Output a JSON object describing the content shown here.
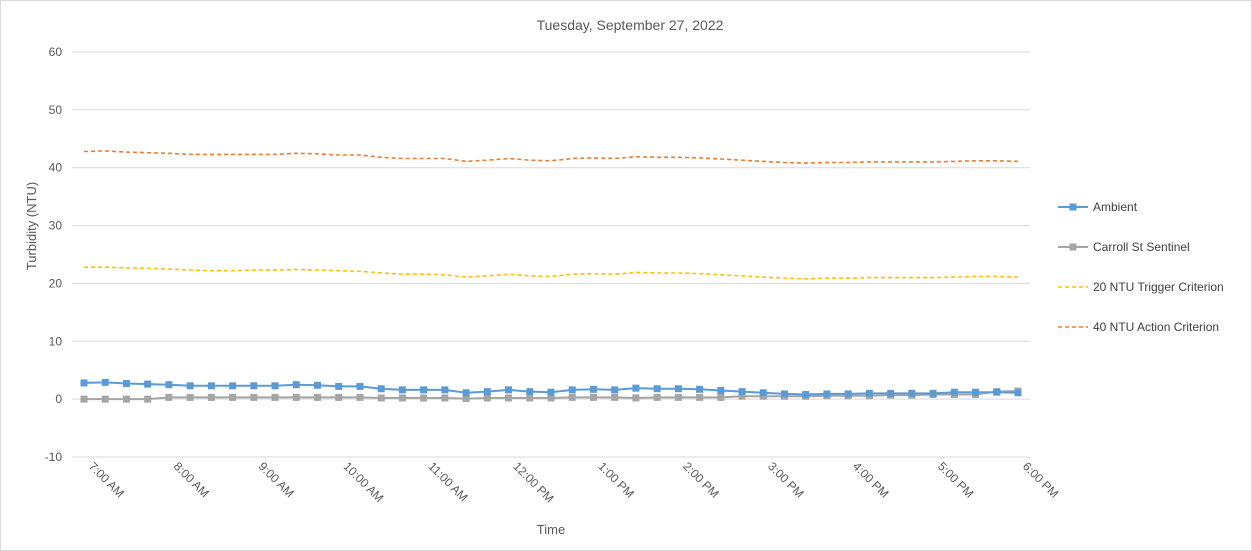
{
  "chart_data": {
    "type": "line",
    "title": "Tuesday, September 27, 2022",
    "xlabel": "Time",
    "ylabel": "Turbidity (NTU)",
    "ylim": [
      -10,
      60
    ],
    "yticks": [
      -10,
      0,
      10,
      20,
      30,
      40,
      50,
      60
    ],
    "x_tick_labels": [
      "7:00 AM",
      "8:00 AM",
      "9:00 AM",
      "10:00 AM",
      "11:00 AM",
      "12:00 PM",
      "1:00 PM",
      "2:00 PM",
      "3:00 PM",
      "4:00 PM",
      "5:00 PM",
      "6:00 PM"
    ],
    "xlim": [
      "7:00 AM",
      "6:00 PM"
    ],
    "grid": "horizontal",
    "legend_position": "right",
    "x": [
      "7:00 AM",
      "7:15 AM",
      "7:30 AM",
      "7:45 AM",
      "8:00 AM",
      "8:15 AM",
      "8:30 AM",
      "8:45 AM",
      "9:00 AM",
      "9:15 AM",
      "9:30 AM",
      "9:45 AM",
      "10:00 AM",
      "10:15 AM",
      "10:30 AM",
      "10:45 AM",
      "11:00 AM",
      "11:15 AM",
      "11:30 AM",
      "11:45 AM",
      "12:00 PM",
      "12:15 PM",
      "12:30 PM",
      "12:45 PM",
      "1:00 PM",
      "1:15 PM",
      "1:30 PM",
      "1:45 PM",
      "2:00 PM",
      "2:15 PM",
      "2:30 PM",
      "2:45 PM",
      "3:00 PM",
      "3:15 PM",
      "3:30 PM",
      "3:45 PM",
      "4:00 PM",
      "4:15 PM",
      "4:30 PM",
      "4:45 PM",
      "5:00 PM",
      "5:15 PM",
      "5:30 PM",
      "5:45 PM",
      "6:00 PM"
    ],
    "series": [
      {
        "name": "Ambient",
        "color": "#5B9BD5",
        "style": "solid",
        "marker": "square",
        "values": [
          2.8,
          2.9,
          2.7,
          2.6,
          2.5,
          2.3,
          2.3,
          2.3,
          2.3,
          2.3,
          2.5,
          2.4,
          2.2,
          2.2,
          1.8,
          1.6,
          1.6,
          1.6,
          1.1,
          1.3,
          1.6,
          1.3,
          1.2,
          1.6,
          1.7,
          1.6,
          1.9,
          1.8,
          1.8,
          1.7,
          1.5,
          1.3,
          1.1,
          0.9,
          0.8,
          0.9,
          0.9,
          1.0,
          1.0,
          1.0,
          1.0,
          1.2,
          1.2,
          1.2,
          1.1
        ]
      },
      {
        "name": "Carroll St Sentinel",
        "color": "#A5A5A5",
        "style": "solid",
        "marker": "square",
        "values": [
          0.0,
          0.0,
          0.0,
          0.0,
          0.3,
          0.3,
          0.3,
          0.3,
          0.3,
          0.3,
          0.3,
          0.3,
          0.3,
          0.3,
          0.2,
          0.2,
          0.2,
          0.2,
          0.1,
          0.2,
          0.2,
          0.2,
          0.2,
          0.3,
          0.3,
          0.3,
          0.2,
          0.3,
          0.3,
          0.3,
          0.3,
          0.5,
          0.5,
          0.5,
          0.5,
          0.6,
          0.6,
          0.6,
          0.7,
          0.7,
          0.8,
          0.8,
          0.8,
          1.3,
          1.4
        ]
      },
      {
        "name": "20 NTU Trigger Criterion",
        "color": "#FFC000",
        "style": "dashed",
        "marker": "none",
        "values": [
          22.8,
          22.8,
          22.7,
          22.6,
          22.5,
          22.3,
          22.2,
          22.2,
          22.3,
          22.3,
          22.4,
          22.3,
          22.2,
          22.1,
          21.8,
          21.6,
          21.6,
          21.5,
          21.1,
          21.3,
          21.6,
          21.3,
          21.2,
          21.6,
          21.7,
          21.6,
          21.9,
          21.8,
          21.8,
          21.7,
          21.5,
          21.3,
          21.1,
          20.9,
          20.8,
          20.9,
          20.9,
          21.0,
          21.0,
          21.0,
          21.0,
          21.1,
          21.2,
          21.2,
          21.1
        ]
      },
      {
        "name": "40 NTU Action Criterion",
        "color": "#ED7D31",
        "style": "dashed",
        "marker": "none",
        "values": [
          42.8,
          42.9,
          42.7,
          42.6,
          42.5,
          42.3,
          42.3,
          42.3,
          42.3,
          42.3,
          42.5,
          42.4,
          42.2,
          42.2,
          41.8,
          41.6,
          41.6,
          41.6,
          41.1,
          41.3,
          41.6,
          41.3,
          41.2,
          41.6,
          41.7,
          41.6,
          41.9,
          41.8,
          41.8,
          41.7,
          41.5,
          41.3,
          41.1,
          40.9,
          40.8,
          40.9,
          40.9,
          41.0,
          41.0,
          41.0,
          41.0,
          41.1,
          41.2,
          41.2,
          41.1
        ]
      }
    ]
  }
}
